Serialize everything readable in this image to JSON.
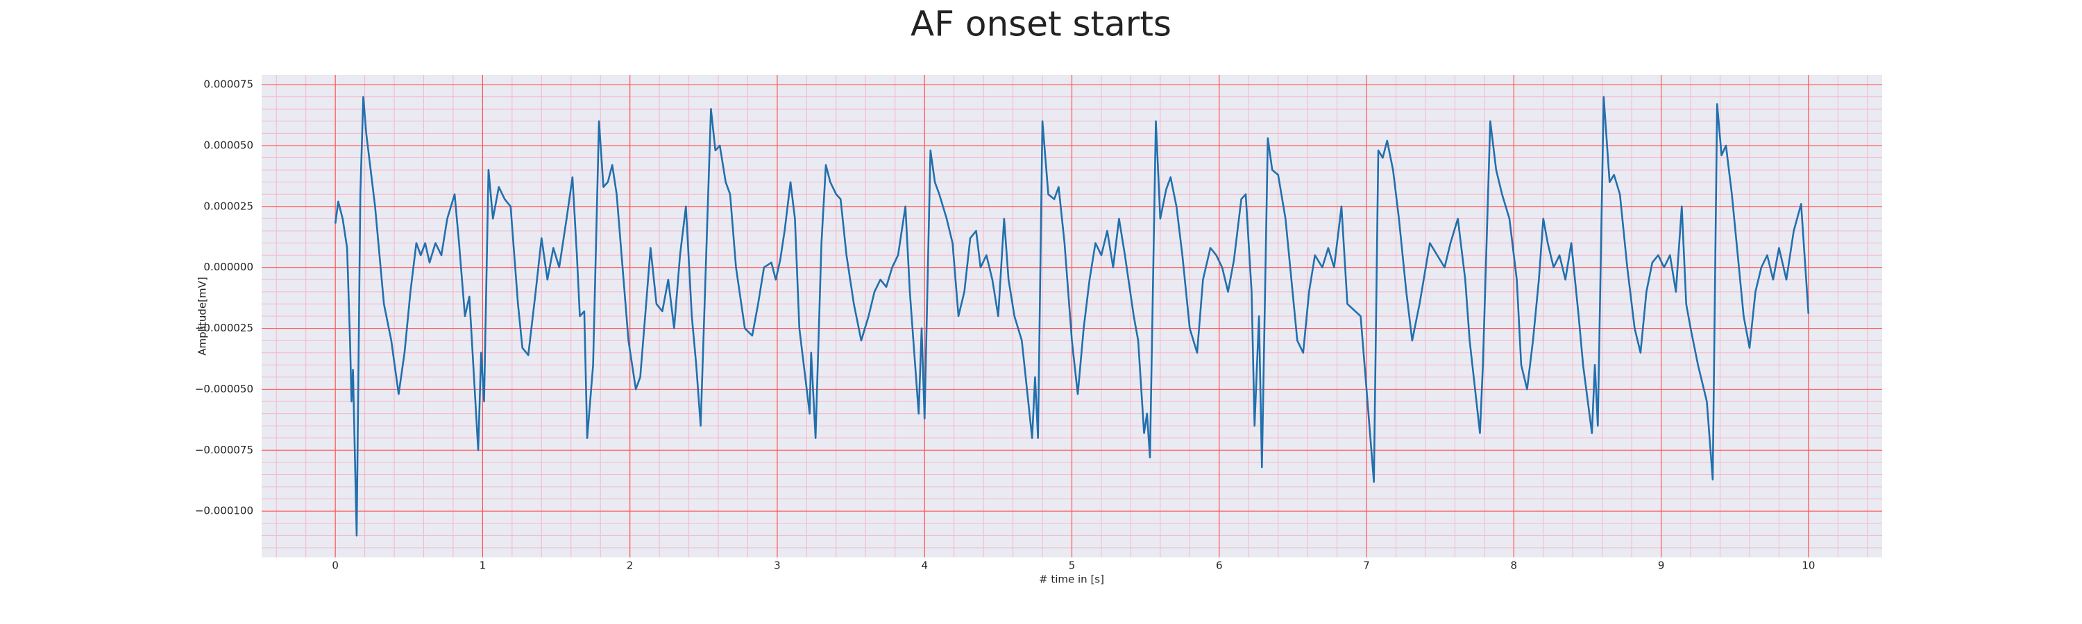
{
  "chart_data": {
    "type": "line",
    "title": "AF onset starts",
    "xlabel": "# time in [s]",
    "ylabel": "Amplitude[mV]",
    "xlim": [
      -0.5,
      10.5
    ],
    "ylim": [
      -0.000119,
      7.9e-05
    ],
    "xticks": [
      0,
      1,
      2,
      3,
      4,
      5,
      6,
      7,
      8,
      9,
      10
    ],
    "yticks": [
      {
        "value": -0.0001,
        "label": "−0.000100"
      },
      {
        "value": -7.5e-05,
        "label": "−0.000075"
      },
      {
        "value": -5e-05,
        "label": "−0.000050"
      },
      {
        "value": -2.5e-05,
        "label": "−0.000025"
      },
      {
        "value": 0,
        "label": "0.000000"
      },
      {
        "value": 2.5e-05,
        "label": "0.000025"
      },
      {
        "value": 5e-05,
        "label": "0.000050"
      },
      {
        "value": 7.5e-05,
        "label": "0.000075"
      }
    ],
    "grid": true,
    "grid_color": "#ff5555",
    "minor_divisions": 5,
    "minor_grid_color": "#f3b8c8",
    "background": "#eaeaf2",
    "series": [
      {
        "color": "#2170ad",
        "x": [
          0.0,
          0.02,
          0.05,
          0.08,
          0.1,
          0.11,
          0.12,
          0.145,
          0.17,
          0.19,
          0.21,
          0.24,
          0.27,
          0.3,
          0.33,
          0.38,
          0.43,
          0.47,
          0.51,
          0.55,
          0.58,
          0.61,
          0.64,
          0.68,
          0.72,
          0.76,
          0.81,
          0.84,
          0.88,
          0.91,
          0.97,
          0.99,
          1.01,
          1.04,
          1.07,
          1.11,
          1.15,
          1.19,
          1.24,
          1.27,
          1.31,
          1.36,
          1.4,
          1.44,
          1.48,
          1.52,
          1.57,
          1.61,
          1.64,
          1.66,
          1.69,
          1.71,
          1.75,
          1.79,
          1.82,
          1.85,
          1.88,
          1.91,
          1.95,
          1.99,
          2.04,
          2.07,
          2.11,
          2.14,
          2.18,
          2.22,
          2.26,
          2.3,
          2.34,
          2.38,
          2.42,
          2.45,
          2.48,
          2.55,
          2.58,
          2.61,
          2.65,
          2.68,
          2.72,
          2.78,
          2.83,
          2.87,
          2.91,
          2.96,
          2.99,
          3.02,
          3.05,
          3.09,
          3.12,
          3.15,
          3.22,
          3.23,
          3.26,
          3.3,
          3.33,
          3.36,
          3.4,
          3.43,
          3.47,
          3.52,
          3.57,
          3.62,
          3.66,
          3.7,
          3.74,
          3.78,
          3.82,
          3.87,
          3.9,
          3.96,
          3.98,
          4.0,
          4.04,
          4.07,
          4.1,
          4.15,
          4.19,
          4.23,
          4.27,
          4.31,
          4.35,
          4.38,
          4.42,
          4.46,
          4.5,
          4.54,
          4.57,
          4.61,
          4.66,
          4.73,
          4.75,
          4.77,
          4.8,
          4.84,
          4.88,
          4.91,
          4.95,
          5.0,
          5.04,
          5.08,
          5.12,
          5.16,
          5.2,
          5.24,
          5.28,
          5.32,
          5.36,
          5.42,
          5.45,
          5.49,
          5.51,
          5.53,
          5.57,
          5.6,
          5.64,
          5.67,
          5.71,
          5.75,
          5.8,
          5.85,
          5.89,
          5.94,
          5.98,
          6.02,
          6.06,
          6.1,
          6.15,
          6.18,
          6.22,
          6.24,
          6.27,
          6.29,
          6.33,
          6.36,
          6.4,
          6.45,
          6.49,
          6.53,
          6.57,
          6.61,
          6.65,
          6.7,
          6.74,
          6.78,
          6.83,
          6.87,
          6.96,
          7.0,
          7.05,
          7.08,
          7.11,
          7.14,
          7.18,
          7.22,
          7.27,
          7.31,
          7.36,
          7.43,
          7.48,
          7.53,
          7.57,
          7.62,
          7.67,
          7.7,
          7.77,
          7.79,
          7.84,
          7.88,
          7.92,
          7.97,
          8.02,
          8.05,
          8.09,
          8.13,
          8.17,
          8.2,
          8.23,
          8.27,
          8.31,
          8.35,
          8.39,
          8.44,
          8.47,
          8.53,
          8.55,
          8.57,
          8.61,
          8.65,
          8.68,
          8.72,
          8.77,
          8.82,
          8.86,
          8.9,
          8.94,
          8.98,
          9.02,
          9.06,
          9.1,
          9.14,
          9.17,
          9.2,
          9.25,
          9.31,
          9.35,
          9.38,
          9.41,
          9.44,
          9.48,
          9.52,
          9.56,
          9.6,
          9.64,
          9.68,
          9.72,
          9.76,
          9.8,
          9.85,
          9.9,
          9.95,
          10.0
        ],
        "values": [
          1.8e-05,
          2.7e-05,
          2e-05,
          8e-06,
          -3e-05,
          -5.5e-05,
          -4.2e-05,
          -0.00011,
          3e-05,
          7e-05,
          5.5e-05,
          4e-05,
          2.5e-05,
          5e-06,
          -1.5e-05,
          -3e-05,
          -5.2e-05,
          -3.5e-05,
          -1e-05,
          1e-05,
          5e-06,
          1e-05,
          2e-06,
          1e-05,
          5e-06,
          2e-05,
          3e-05,
          1e-05,
          -2e-05,
          -1.2e-05,
          -7.5e-05,
          -3.5e-05,
          -5.5e-05,
          4e-05,
          2e-05,
          3.3e-05,
          2.8e-05,
          2.5e-05,
          -1.5e-05,
          -3.3e-05,
          -3.6e-05,
          -1e-05,
          1.2e-05,
          -5e-06,
          8e-06,
          0,
          2e-05,
          3.7e-05,
          5e-06,
          -2e-05,
          -1.8e-05,
          -7e-05,
          -4e-05,
          6e-05,
          3.3e-05,
          3.5e-05,
          4.2e-05,
          3e-05,
          0,
          -3e-05,
          -5e-05,
          -4.5e-05,
          -1.5e-05,
          8e-06,
          -1.5e-05,
          -1.8e-05,
          -5e-06,
          -2.5e-05,
          5e-06,
          2.5e-05,
          -2e-05,
          -4e-05,
          -6.5e-05,
          6.5e-05,
          4.8e-05,
          5e-05,
          3.5e-05,
          3e-05,
          0,
          -2.5e-05,
          -2.8e-05,
          -1.5e-05,
          0,
          2e-06,
          -5e-06,
          3e-06,
          1.5e-05,
          3.5e-05,
          2e-05,
          -2.5e-05,
          -6e-05,
          -3.5e-05,
          -7e-05,
          1e-05,
          4.2e-05,
          3.5e-05,
          3e-05,
          2.8e-05,
          5e-06,
          -1.5e-05,
          -3e-05,
          -2e-05,
          -1e-05,
          -5e-06,
          -8e-06,
          0,
          5e-06,
          2.5e-05,
          -1e-05,
          -6e-05,
          -2.5e-05,
          -6.2e-05,
          4.8e-05,
          3.5e-05,
          3e-05,
          2e-05,
          1e-05,
          -2e-05,
          -1e-05,
          1.2e-05,
          1.5e-05,
          0,
          5e-06,
          -5e-06,
          -2e-05,
          2e-05,
          -5e-06,
          -2e-05,
          -3e-05,
          -7e-05,
          -4.5e-05,
          -7e-05,
          6e-05,
          3e-05,
          2.8e-05,
          3.3e-05,
          1e-05,
          -3e-05,
          -5.2e-05,
          -2.5e-05,
          -5e-06,
          1e-05,
          5e-06,
          1.5e-05,
          0,
          2e-05,
          5e-06,
          -2e-05,
          -3e-05,
          -6.8e-05,
          -6e-05,
          -7.8e-05,
          6e-05,
          2e-05,
          3.2e-05,
          3.7e-05,
          2.5e-05,
          5e-06,
          -2.5e-05,
          -3.5e-05,
          -5e-06,
          8e-06,
          5e-06,
          0,
          -1e-05,
          3e-06,
          2.8e-05,
          3e-05,
          -1e-05,
          -6.5e-05,
          -2e-05,
          -8.2e-05,
          5.3e-05,
          4e-05,
          3.8e-05,
          2e-05,
          -5e-06,
          -3e-05,
          -3.5e-05,
          -1e-05,
          5e-06,
          0,
          8e-06,
          0,
          2.5e-05,
          -1.5e-05,
          -2e-05,
          -5e-05,
          -8.8e-05,
          4.8e-05,
          4.5e-05,
          5.2e-05,
          4e-05,
          2e-05,
          -1e-05,
          -3e-05,
          -1.5e-05,
          1e-05,
          5e-06,
          0,
          1e-05,
          2e-05,
          -5e-06,
          -3e-05,
          -6.8e-05,
          -4e-05,
          6e-05,
          4e-05,
          3e-05,
          2e-05,
          -5e-06,
          -4e-05,
          -5e-05,
          -3e-05,
          -5e-06,
          2e-05,
          1e-05,
          0,
          5e-06,
          -5e-06,
          1e-05,
          -2e-05,
          -4e-05,
          -6.8e-05,
          -4e-05,
          -6.5e-05,
          7e-05,
          3.5e-05,
          3.8e-05,
          3e-05,
          0,
          -2.5e-05,
          -3.5e-05,
          -1e-05,
          2e-06,
          5e-06,
          0,
          5e-06,
          -1e-05,
          2.5e-05,
          -1.5e-05,
          -2.5e-05,
          -4e-05,
          -5.5e-05,
          -8.7e-05,
          6.7e-05,
          4.6e-05,
          5e-05,
          3e-05,
          5e-06,
          -2e-05,
          -3.3e-05,
          -1e-05,
          0,
          5e-06,
          -5e-06,
          8e-06,
          -5e-06,
          1.5e-05,
          2.6e-05,
          -1.9e-05
        ]
      }
    ]
  }
}
